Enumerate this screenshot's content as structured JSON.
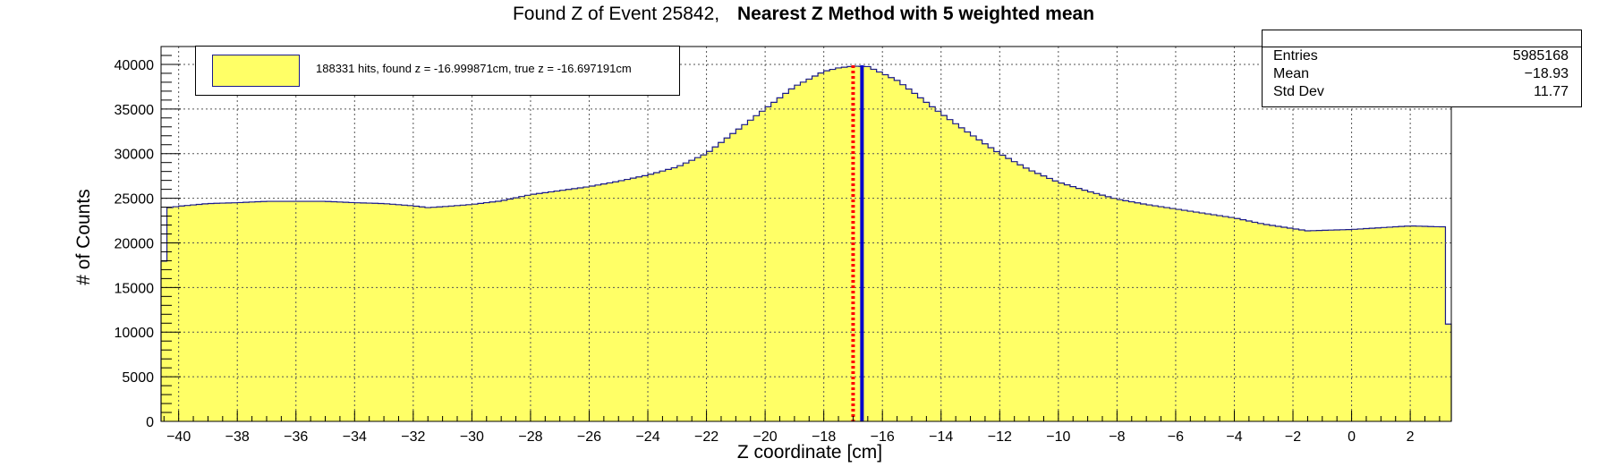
{
  "chart_data": {
    "type": "bar",
    "title": "Found Z of Event 25842,",
    "subtitle": "Nearest Z Method with 5 weighted mean",
    "xlabel": "Z coordinate [cm]",
    "ylabel": "# of Counts",
    "xlim": [
      -40.6,
      3.4
    ],
    "ylim": [
      0,
      42000
    ],
    "x_ticks": [
      -40,
      -38,
      -36,
      -34,
      -32,
      -30,
      -28,
      -26,
      -24,
      -22,
      -20,
      -18,
      -16,
      -14,
      -12,
      -10,
      -8,
      -6,
      -4,
      -2,
      0,
      2
    ],
    "x_tick_labels": [
      "−40",
      "−38",
      "−36",
      "−34",
      "−32",
      "−30",
      "−28",
      "−26",
      "−24",
      "−22",
      "−20",
      "−18",
      "−16",
      "−14",
      "−12",
      "−10",
      "−8",
      "−6",
      "−4",
      "−2",
      "0",
      "2"
    ],
    "y_ticks": [
      0,
      5000,
      10000,
      15000,
      20000,
      25000,
      30000,
      35000,
      40000
    ],
    "y_tick_labels": [
      "0",
      "5000",
      "10000",
      "15000",
      "20000",
      "25000",
      "30000",
      "35000",
      "40000"
    ],
    "grid": true,
    "fill_color": "#ffff66",
    "line_color": "#1a1a8a",
    "series": [
      {
        "name": "188331 hits, found z = -16.999871cm, true z = -16.697191cm",
        "profile_points": [
          [
            -40.6,
            12000
          ],
          [
            -40.4,
            23900
          ],
          [
            -40.0,
            24100
          ],
          [
            -39.0,
            24400
          ],
          [
            -38.0,
            24500
          ],
          [
            -37.0,
            24650
          ],
          [
            -36.0,
            24650
          ],
          [
            -35.0,
            24650
          ],
          [
            -34.0,
            24500
          ],
          [
            -33.0,
            24400
          ],
          [
            -32.0,
            24150
          ],
          [
            -31.5,
            23950
          ],
          [
            -31.0,
            24050
          ],
          [
            -30.0,
            24300
          ],
          [
            -29.0,
            24700
          ],
          [
            -28.0,
            25400
          ],
          [
            -27.0,
            25850
          ],
          [
            -26.0,
            26300
          ],
          [
            -25.0,
            26900
          ],
          [
            -24.0,
            27600
          ],
          [
            -23.0,
            28500
          ],
          [
            -22.0,
            30000
          ],
          [
            -21.0,
            32500
          ],
          [
            -20.0,
            35000
          ],
          [
            -19.0,
            37500
          ],
          [
            -18.0,
            39200
          ],
          [
            -17.5,
            39600
          ],
          [
            -17.0,
            39800
          ],
          [
            -16.5,
            39750
          ],
          [
            -16.0,
            39000
          ],
          [
            -15.5,
            38200
          ],
          [
            -15.0,
            37000
          ],
          [
            -14.0,
            34500
          ],
          [
            -13.0,
            32200
          ],
          [
            -12.0,
            30000
          ],
          [
            -11.0,
            28200
          ],
          [
            -10.0,
            26800
          ],
          [
            -9.0,
            25800
          ],
          [
            -8.0,
            24900
          ],
          [
            -7.0,
            24300
          ],
          [
            -6.0,
            23800
          ],
          [
            -5.0,
            23300
          ],
          [
            -4.0,
            22800
          ],
          [
            -3.0,
            22100
          ],
          [
            -2.0,
            21600
          ],
          [
            -1.5,
            21350
          ],
          [
            -1.0,
            21400
          ],
          [
            0.0,
            21500
          ],
          [
            1.0,
            21700
          ],
          [
            2.0,
            21900
          ],
          [
            3.0,
            21800
          ],
          [
            3.15,
            21800
          ],
          [
            3.2,
            10900
          ],
          [
            3.4,
            10900
          ]
        ],
        "bin_width": 0.2
      }
    ],
    "lines": [
      {
        "x": -16.999871,
        "color": "#ff0000",
        "style": "dotted",
        "label": "found z"
      },
      {
        "x": -16.697191,
        "color": "#0000cc",
        "style": "solid",
        "label": "true z"
      }
    ],
    "stats": [
      {
        "label": "Entries",
        "value": "5985168"
      },
      {
        "label": "Mean",
        "value": "−18.93"
      },
      {
        "label": "Std Dev",
        "value": "11.77"
      }
    ],
    "legend_position": "top-left"
  }
}
